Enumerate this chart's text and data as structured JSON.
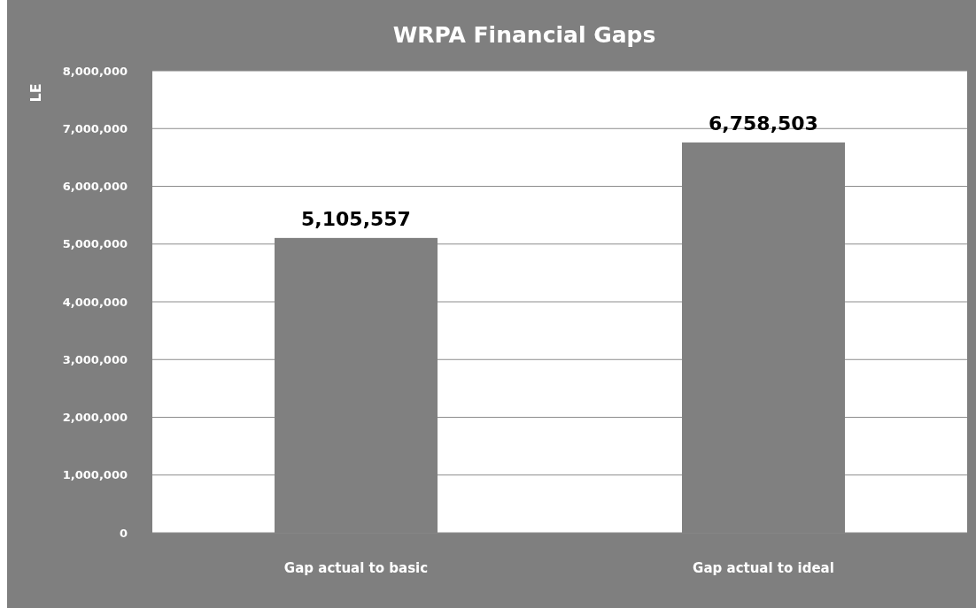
{
  "chart_data": {
    "type": "bar",
    "title": "WRPA Financial Gaps",
    "ylabel": "LE",
    "categories": [
      "Gap actual to basic",
      "Gap actual to ideal"
    ],
    "values": [
      5105557,
      6758503
    ],
    "color": "#808080",
    "ylim": [
      0,
      8000000
    ],
    "yticks": [
      {
        "value": 0,
        "label": "0"
      },
      {
        "value": 1000000,
        "label": "1,000,000"
      },
      {
        "value": 2000000,
        "label": "2,000,000"
      },
      {
        "value": 3000000,
        "label": "3,000,000"
      },
      {
        "value": 4000000,
        "label": "4,000,000"
      },
      {
        "value": 5000000,
        "label": "5,000,000"
      },
      {
        "value": 6000000,
        "label": "6,000,000"
      },
      {
        "value": 7000000,
        "label": "7,000,000"
      },
      {
        "value": 8000000,
        "label": "8,000,000"
      }
    ],
    "grid": "y",
    "value_labels": [
      "5,105,557",
      "6,758,503"
    ]
  }
}
